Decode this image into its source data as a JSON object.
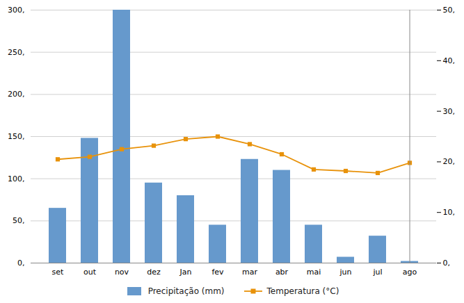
{
  "chart_data": {
    "type": "bar",
    "categories": [
      "set",
      "out",
      "nov",
      "dez",
      "Jan",
      "fev",
      "mar",
      "abr",
      "mai",
      "jun",
      "jul",
      "ago"
    ],
    "series": [
      {
        "name": "Precipitação (mm)",
        "type": "bar",
        "color": "#6699cc",
        "values": [
          65,
          148,
          300,
          95,
          80,
          45,
          123,
          110,
          45,
          7,
          32,
          2
        ]
      },
      {
        "name": "Temperatura (°C)",
        "type": "line",
        "color": "#e8920a",
        "marker": "square",
        "axis": "y2",
        "values": [
          20.5,
          21.0,
          22.5,
          23.2,
          24.5,
          25.0,
          23.5,
          21.5,
          18.5,
          18.2,
          17.8,
          19.8
        ]
      }
    ],
    "ylim": [
      0,
      300
    ],
    "yticks": [
      {
        "value": 0,
        "label": "0,"
      },
      {
        "value": 50,
        "label": "50,"
      },
      {
        "value": 100,
        "label": "100,"
      },
      {
        "value": 150,
        "label": "150,"
      },
      {
        "value": 200,
        "label": "200,"
      },
      {
        "value": 250,
        "label": "250,"
      },
      {
        "value": 300,
        "label": "300,"
      }
    ],
    "y2lim": [
      0,
      50
    ],
    "y2ticks": [
      {
        "value": 0,
        "label": "0,"
      },
      {
        "value": 10,
        "label": "10,"
      },
      {
        "value": 20,
        "label": "20,"
      },
      {
        "value": 30,
        "label": "30,"
      },
      {
        "value": 40,
        "label": "40,"
      },
      {
        "value": 50,
        "label": "50,"
      }
    ],
    "grid": true,
    "legend": "bottom"
  }
}
